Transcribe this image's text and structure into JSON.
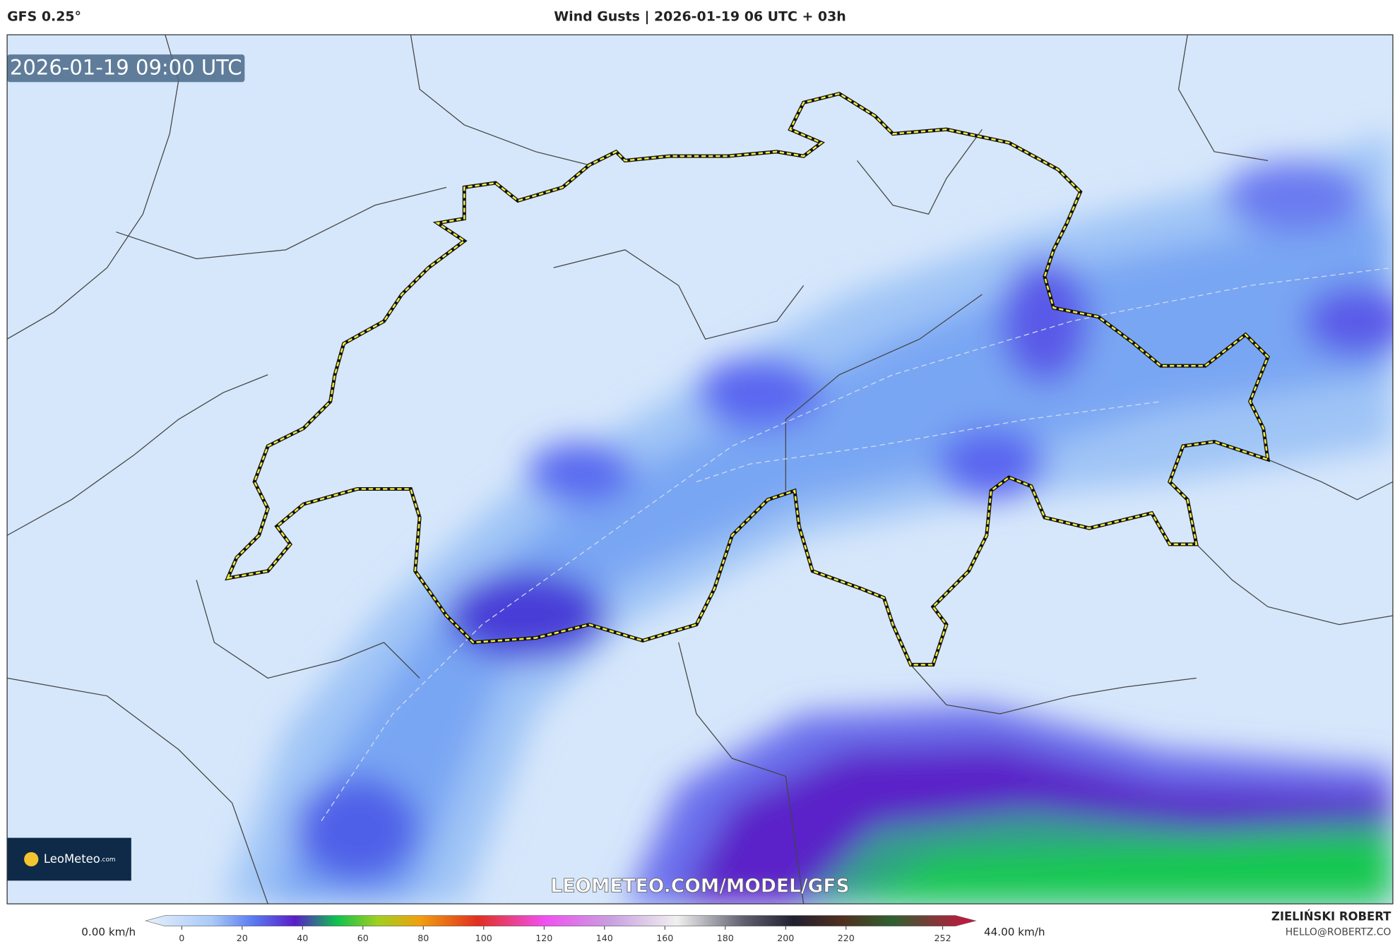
{
  "header": {
    "model": "GFS 0.25°",
    "title": "Wind Gusts | 2026-01-19 06 UTC + 03h"
  },
  "map": {
    "timestamp": "2026-01-19 09:00 UTC",
    "logo": "LeoMeteo",
    "logo_suffix": ".com",
    "watermark": "LEOMETEO.COM/MODEL/GFS"
  },
  "colorbar": {
    "min_label": "0.00 km/h",
    "max_label": "44.00 km/h",
    "range": [
      -12,
      263
    ],
    "ticks": [
      0,
      20,
      40,
      60,
      80,
      100,
      120,
      140,
      160,
      180,
      200,
      220,
      252
    ]
  },
  "footer": {
    "author": "ZIELIŃSKI ROBERT",
    "email": "HELLO@ROBERTZ.CO"
  }
}
